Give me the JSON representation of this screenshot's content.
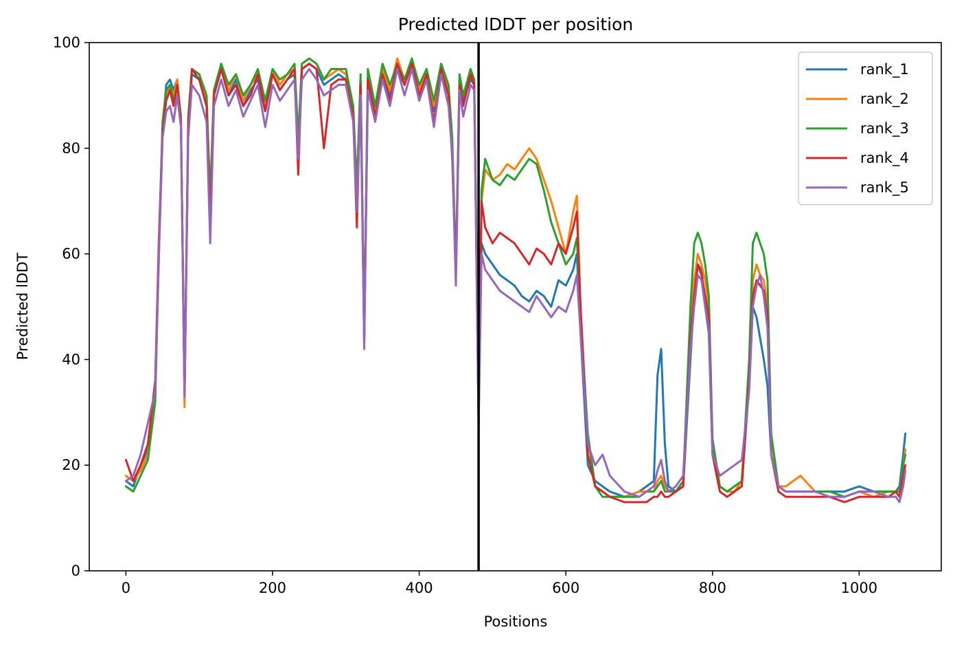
{
  "chart_data": {
    "type": "line",
    "title": "Predicted lDDT per position",
    "xlabel": "Positions",
    "ylabel": "Predicted lDDT",
    "xlim": [
      -50,
      1112
    ],
    "ylim": [
      0,
      100
    ],
    "xticks": [
      0,
      200,
      400,
      600,
      800,
      1000
    ],
    "yticks": [
      0,
      20,
      40,
      60,
      80,
      100
    ],
    "grid": false,
    "legend_position": "top-right",
    "vline_x": 481,
    "vline_color": "#000000",
    "series": [
      {
        "name": "rank_1",
        "color": "#1f77b4",
        "x": [
          0,
          10,
          20,
          30,
          40,
          45,
          50,
          55,
          60,
          65,
          70,
          75,
          80,
          85,
          90,
          100,
          110,
          115,
          120,
          130,
          140,
          150,
          160,
          170,
          180,
          190,
          200,
          210,
          220,
          230,
          235,
          240,
          250,
          260,
          270,
          280,
          290,
          300,
          310,
          315,
          320,
          325,
          330,
          340,
          350,
          360,
          370,
          380,
          390,
          400,
          410,
          420,
          430,
          440,
          445,
          450,
          455,
          460,
          470,
          475,
          481,
          485,
          490,
          500,
          510,
          520,
          530,
          540,
          550,
          560,
          570,
          580,
          590,
          600,
          610,
          615,
          620,
          630,
          640,
          650,
          660,
          680,
          700,
          710,
          720,
          725,
          730,
          735,
          740,
          750,
          760,
          770,
          775,
          780,
          785,
          790,
          795,
          800,
          810,
          820,
          830,
          840,
          850,
          855,
          860,
          865,
          870,
          875,
          880,
          890,
          900,
          920,
          940,
          960,
          980,
          1000,
          1020,
          1040,
          1050,
          1055,
          1060,
          1063
        ],
        "y": [
          17,
          16,
          20,
          23,
          34,
          62,
          84,
          92,
          93,
          91,
          93,
          85,
          34,
          84,
          94,
          93,
          88,
          70,
          90,
          95,
          90,
          93,
          88,
          91,
          93,
          87,
          94,
          91,
          93,
          94,
          80,
          95,
          96,
          95,
          92,
          93,
          94,
          93,
          86,
          72,
          92,
          44,
          93,
          86,
          94,
          90,
          95,
          92,
          96,
          90,
          94,
          87,
          95,
          90,
          80,
          56,
          92,
          89,
          93,
          92,
          30,
          62,
          60,
          58,
          56,
          55,
          54,
          52,
          51,
          53,
          52,
          50,
          55,
          54,
          57,
          60,
          45,
          20,
          17,
          16,
          15,
          14,
          15,
          16,
          17,
          37,
          42,
          24,
          16,
          15,
          16,
          40,
          52,
          58,
          57,
          50,
          45,
          22,
          16,
          15,
          16,
          17,
          35,
          50,
          48,
          44,
          40,
          35,
          22,
          16,
          15,
          15,
          15,
          15,
          15,
          16,
          15,
          15,
          15,
          16,
          22,
          26
        ]
      },
      {
        "name": "rank_2",
        "color": "#ff7f0e",
        "x": [
          0,
          10,
          20,
          30,
          40,
          45,
          50,
          55,
          60,
          65,
          70,
          75,
          80,
          85,
          90,
          100,
          110,
          115,
          120,
          130,
          140,
          150,
          160,
          170,
          180,
          190,
          200,
          210,
          220,
          230,
          235,
          240,
          250,
          260,
          270,
          280,
          290,
          300,
          310,
          315,
          320,
          325,
          330,
          340,
          350,
          360,
          370,
          380,
          390,
          400,
          410,
          420,
          430,
          440,
          445,
          450,
          455,
          460,
          470,
          475,
          481,
          485,
          490,
          500,
          510,
          520,
          530,
          540,
          550,
          560,
          570,
          580,
          590,
          600,
          610,
          615,
          620,
          630,
          640,
          650,
          660,
          680,
          700,
          710,
          720,
          725,
          730,
          735,
          740,
          750,
          760,
          770,
          775,
          780,
          785,
          790,
          795,
          800,
          810,
          820,
          830,
          840,
          850,
          855,
          860,
          865,
          870,
          875,
          880,
          890,
          900,
          920,
          940,
          960,
          980,
          1000,
          1020,
          1040,
          1050,
          1055,
          1060,
          1063
        ],
        "y": [
          18,
          17,
          19,
          22,
          33,
          60,
          83,
          90,
          92,
          90,
          93,
          86,
          31,
          85,
          95,
          94,
          89,
          71,
          91,
          96,
          91,
          94,
          89,
          92,
          94,
          88,
          95,
          92,
          94,
          95,
          81,
          96,
          97,
          96,
          93,
          94,
          95,
          94,
          87,
          73,
          93,
          45,
          94,
          87,
          95,
          91,
          97,
          93,
          97,
          91,
          95,
          88,
          96,
          91,
          81,
          57,
          93,
          90,
          94,
          93,
          31,
          70,
          76,
          74,
          75,
          77,
          76,
          78,
          80,
          78,
          74,
          70,
          65,
          60,
          68,
          71,
          50,
          25,
          16,
          15,
          14,
          14,
          15,
          15,
          15,
          17,
          18,
          16,
          15,
          15,
          17,
          45,
          55,
          60,
          58,
          55,
          50,
          24,
          16,
          15,
          15,
          17,
          38,
          55,
          58,
          56,
          55,
          50,
          25,
          16,
          16,
          18,
          15,
          15,
          14,
          15,
          14,
          15,
          15,
          15,
          20,
          23
        ]
      },
      {
        "name": "rank_3",
        "color": "#2ca02c",
        "x": [
          0,
          10,
          20,
          30,
          40,
          45,
          50,
          55,
          60,
          65,
          70,
          75,
          80,
          85,
          90,
          100,
          110,
          115,
          120,
          130,
          140,
          150,
          160,
          170,
          180,
          190,
          200,
          210,
          220,
          230,
          235,
          240,
          250,
          260,
          270,
          280,
          290,
          300,
          310,
          315,
          320,
          325,
          330,
          340,
          350,
          360,
          370,
          380,
          390,
          400,
          410,
          420,
          430,
          440,
          445,
          450,
          455,
          460,
          470,
          475,
          481,
          485,
          490,
          500,
          510,
          520,
          530,
          540,
          550,
          560,
          570,
          580,
          590,
          600,
          610,
          615,
          620,
          630,
          640,
          650,
          660,
          680,
          700,
          710,
          720,
          725,
          730,
          735,
          740,
          750,
          760,
          770,
          775,
          780,
          785,
          790,
          795,
          800,
          810,
          820,
          830,
          840,
          850,
          855,
          860,
          865,
          870,
          875,
          880,
          890,
          900,
          920,
          940,
          960,
          980,
          1000,
          1020,
          1040,
          1050,
          1055,
          1060,
          1063
        ],
        "y": [
          16,
          15,
          18,
          21,
          32,
          61,
          85,
          91,
          92,
          89,
          92,
          86,
          33,
          86,
          95,
          94,
          90,
          70,
          91,
          96,
          92,
          94,
          90,
          92,
          95,
          89,
          95,
          93,
          94,
          96,
          82,
          96,
          97,
          96,
          93,
          95,
          95,
          95,
          88,
          72,
          94,
          44,
          95,
          88,
          96,
          92,
          96,
          93,
          97,
          92,
          95,
          89,
          96,
          92,
          82,
          57,
          94,
          90,
          95,
          93,
          29,
          72,
          78,
          74,
          73,
          75,
          74,
          76,
          78,
          77,
          72,
          66,
          62,
          58,
          60,
          63,
          48,
          26,
          16,
          14,
          14,
          14,
          14,
          15,
          15,
          16,
          17,
          15,
          15,
          15,
          17,
          50,
          62,
          64,
          62,
          58,
          52,
          25,
          16,
          15,
          16,
          17,
          40,
          62,
          64,
          62,
          60,
          55,
          26,
          16,
          15,
          15,
          15,
          15,
          14,
          15,
          15,
          15,
          15,
          15,
          20,
          22
        ]
      },
      {
        "name": "rank_4",
        "color": "#d62728",
        "x": [
          0,
          10,
          20,
          30,
          40,
          45,
          50,
          55,
          60,
          65,
          70,
          75,
          80,
          85,
          90,
          100,
          110,
          115,
          120,
          130,
          140,
          150,
          160,
          170,
          180,
          190,
          200,
          210,
          220,
          230,
          235,
          240,
          250,
          260,
          270,
          280,
          290,
          300,
          310,
          315,
          320,
          325,
          330,
          340,
          350,
          360,
          370,
          380,
          390,
          400,
          410,
          420,
          430,
          440,
          445,
          450,
          455,
          460,
          470,
          475,
          481,
          485,
          490,
          500,
          510,
          520,
          530,
          540,
          550,
          560,
          570,
          580,
          590,
          600,
          610,
          615,
          620,
          630,
          640,
          650,
          660,
          680,
          700,
          710,
          720,
          725,
          730,
          735,
          740,
          750,
          760,
          770,
          775,
          780,
          785,
          790,
          795,
          800,
          810,
          820,
          830,
          840,
          850,
          855,
          860,
          865,
          870,
          875,
          880,
          890,
          900,
          920,
          940,
          960,
          980,
          1000,
          1020,
          1040,
          1050,
          1055,
          1060,
          1063
        ],
        "y": [
          21,
          17,
          20,
          24,
          36,
          63,
          83,
          89,
          91,
          88,
          92,
          85,
          34,
          84,
          95,
          93,
          88,
          65,
          90,
          95,
          90,
          92,
          88,
          90,
          94,
          87,
          94,
          91,
          93,
          95,
          75,
          95,
          96,
          95,
          80,
          92,
          93,
          93,
          86,
          65,
          92,
          43,
          93,
          86,
          94,
          89,
          96,
          92,
          96,
          90,
          94,
          85,
          95,
          90,
          78,
          56,
          92,
          88,
          94,
          92,
          28,
          70,
          65,
          62,
          64,
          63,
          62,
          60,
          58,
          61,
          60,
          58,
          62,
          60,
          65,
          68,
          50,
          22,
          16,
          15,
          14,
          13,
          13,
          13,
          14,
          14,
          15,
          14,
          14,
          15,
          16,
          44,
          52,
          58,
          56,
          52,
          48,
          22,
          15,
          14,
          15,
          16,
          36,
          52,
          55,
          54,
          53,
          48,
          22,
          15,
          14,
          14,
          14,
          14,
          13,
          14,
          14,
          14,
          15,
          14,
          18,
          20
        ]
      },
      {
        "name": "rank_5",
        "color": "#9467bd",
        "x": [
          0,
          10,
          20,
          30,
          40,
          45,
          50,
          55,
          60,
          65,
          70,
          75,
          80,
          85,
          90,
          100,
          110,
          115,
          120,
          130,
          140,
          150,
          160,
          170,
          180,
          190,
          200,
          210,
          220,
          230,
          235,
          240,
          250,
          260,
          270,
          280,
          290,
          300,
          310,
          315,
          320,
          325,
          330,
          340,
          350,
          360,
          370,
          380,
          390,
          400,
          410,
          420,
          430,
          440,
          445,
          450,
          455,
          460,
          470,
          475,
          481,
          485,
          490,
          500,
          510,
          520,
          530,
          540,
          550,
          560,
          570,
          580,
          590,
          600,
          610,
          615,
          620,
          630,
          640,
          650,
          660,
          680,
          700,
          710,
          720,
          725,
          730,
          735,
          740,
          750,
          760,
          770,
          775,
          780,
          785,
          790,
          795,
          800,
          810,
          820,
          830,
          840,
          850,
          855,
          860,
          865,
          870,
          875,
          880,
          890,
          900,
          920,
          940,
          960,
          980,
          1000,
          1020,
          1040,
          1050,
          1055,
          1060,
          1063
        ],
        "y": [
          17,
          18,
          22,
          28,
          34,
          60,
          82,
          87,
          88,
          85,
          90,
          84,
          33,
          82,
          92,
          90,
          85,
          62,
          88,
          93,
          88,
          91,
          86,
          89,
          92,
          84,
          92,
          89,
          91,
          93,
          78,
          93,
          95,
          93,
          90,
          91,
          92,
          92,
          85,
          68,
          90,
          42,
          91,
          85,
          93,
          88,
          95,
          90,
          95,
          89,
          93,
          84,
          94,
          88,
          79,
          54,
          91,
          86,
          92,
          91,
          27,
          60,
          57,
          55,
          53,
          52,
          51,
          50,
          49,
          52,
          50,
          48,
          50,
          49,
          53,
          56,
          45,
          24,
          20,
          22,
          18,
          15,
          14,
          15,
          16,
          19,
          21,
          17,
          15,
          16,
          18,
          42,
          50,
          56,
          55,
          50,
          46,
          22,
          18,
          19,
          20,
          21,
          34,
          50,
          54,
          56,
          52,
          46,
          22,
          16,
          15,
          15,
          15,
          14,
          14,
          15,
          15,
          14,
          14,
          13,
          16,
          19
        ]
      }
    ]
  }
}
